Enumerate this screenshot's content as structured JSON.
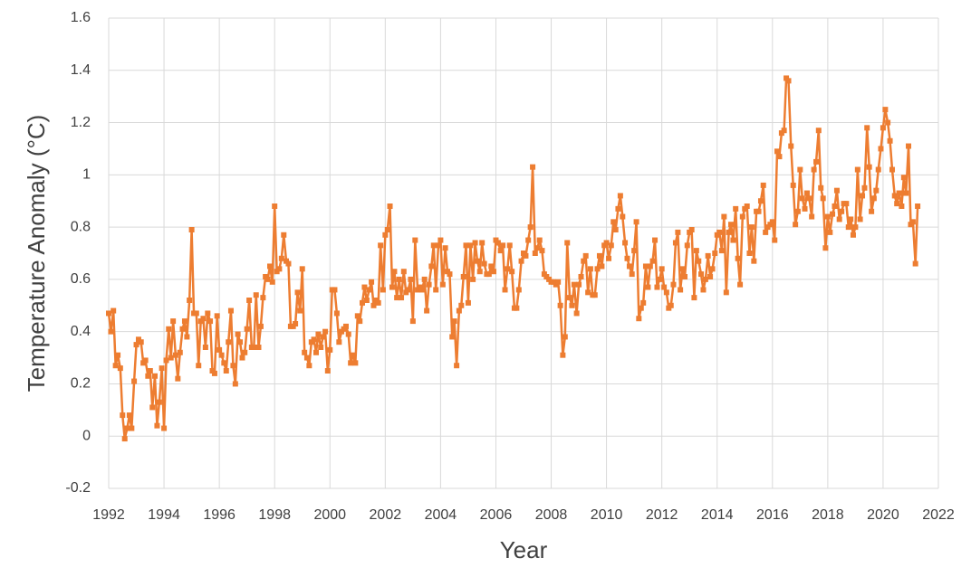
{
  "chart_data": {
    "type": "line",
    "x_label": "Year",
    "y_label": "Temperature Anomaly (°C)",
    "color": "#ed7d31",
    "grid": true,
    "markers": true,
    "xlim": [
      1992,
      2022
    ],
    "xticks": [
      1992,
      1994,
      1996,
      1998,
      2000,
      2002,
      2004,
      2006,
      2008,
      2010,
      2012,
      2014,
      2016,
      2018,
      2020,
      2022
    ],
    "ylim": [
      -0.2,
      1.6
    ],
    "yticks": [
      -0.2,
      0,
      0.2,
      0.4,
      0.6,
      0.8,
      1,
      1.2,
      1.4,
      1.6
    ],
    "x": [
      1992,
      1992.08,
      1992.17,
      1992.25,
      1992.33,
      1992.42,
      1992.5,
      1992.58,
      1992.67,
      1992.75,
      1992.83,
      1992.92,
      1993,
      1993.08,
      1993.17,
      1993.25,
      1993.33,
      1993.42,
      1993.5,
      1993.58,
      1993.67,
      1993.75,
      1993.83,
      1993.92,
      1994,
      1994.08,
      1994.17,
      1994.25,
      1994.33,
      1994.42,
      1994.5,
      1994.58,
      1994.67,
      1994.75,
      1994.83,
      1994.92,
      1995,
      1995.08,
      1995.17,
      1995.25,
      1995.33,
      1995.42,
      1995.5,
      1995.58,
      1995.67,
      1995.75,
      1995.83,
      1995.92,
      1996,
      1996.08,
      1996.17,
      1996.25,
      1996.33,
      1996.42,
      1996.5,
      1996.58,
      1996.67,
      1996.75,
      1996.83,
      1996.92,
      1997,
      1997.08,
      1997.17,
      1997.25,
      1997.33,
      1997.42,
      1997.5,
      1997.58,
      1997.67,
      1997.75,
      1997.83,
      1997.92,
      1998,
      1998.08,
      1998.17,
      1998.25,
      1998.33,
      1998.42,
      1998.5,
      1998.58,
      1998.67,
      1998.75,
      1998.83,
      1998.92,
      1999,
      1999.08,
      1999.17,
      1999.25,
      1999.33,
      1999.42,
      1999.5,
      1999.58,
      1999.67,
      1999.75,
      1999.83,
      1999.92,
      2000,
      2000.08,
      2000.17,
      2000.25,
      2000.33,
      2000.42,
      2000.5,
      2000.58,
      2000.67,
      2000.75,
      2000.83,
      2000.92,
      2001,
      2001.08,
      2001.17,
      2001.25,
      2001.33,
      2001.42,
      2001.5,
      2001.58,
      2001.67,
      2001.75,
      2001.83,
      2001.92,
      2002,
      2002.08,
      2002.17,
      2002.25,
      2002.33,
      2002.42,
      2002.5,
      2002.58,
      2002.67,
      2002.75,
      2002.83,
      2002.92,
      2003,
      2003.08,
      2003.17,
      2003.25,
      2003.33,
      2003.42,
      2003.5,
      2003.58,
      2003.67,
      2003.75,
      2003.83,
      2003.92,
      2004,
      2004.08,
      2004.17,
      2004.25,
      2004.33,
      2004.42,
      2004.5,
      2004.58,
      2004.67,
      2004.75,
      2004.83,
      2004.92,
      2005,
      2005.08,
      2005.17,
      2005.25,
      2005.33,
      2005.42,
      2005.5,
      2005.58,
      2005.67,
      2005.75,
      2005.83,
      2005.92,
      2006,
      2006.08,
      2006.17,
      2006.25,
      2006.33,
      2006.42,
      2006.5,
      2006.58,
      2006.67,
      2006.75,
      2006.83,
      2006.92,
      2007,
      2007.08,
      2007.17,
      2007.25,
      2007.33,
      2007.42,
      2007.5,
      2007.58,
      2007.67,
      2007.75,
      2007.83,
      2007.92,
      2008,
      2008.08,
      2008.17,
      2008.25,
      2008.33,
      2008.42,
      2008.5,
      2008.58,
      2008.67,
      2008.75,
      2008.83,
      2008.92,
      2009,
      2009.08,
      2009.17,
      2009.25,
      2009.33,
      2009.42,
      2009.5,
      2009.58,
      2009.67,
      2009.75,
      2009.83,
      2009.92,
      2010,
      2010.08,
      2010.17,
      2010.25,
      2010.33,
      2010.42,
      2010.5,
      2010.58,
      2010.67,
      2010.75,
      2010.83,
      2010.92,
      2011,
      2011.08,
      2011.17,
      2011.25,
      2011.33,
      2011.42,
      2011.5,
      2011.58,
      2011.67,
      2011.75,
      2011.83,
      2011.92,
      2012,
      2012.08,
      2012.17,
      2012.25,
      2012.33,
      2012.42,
      2012.5,
      2012.58,
      2012.67,
      2012.75,
      2012.83,
      2012.92,
      2013,
      2013.08,
      2013.17,
      2013.25,
      2013.33,
      2013.42,
      2013.5,
      2013.58,
      2013.67,
      2013.75,
      2013.83,
      2013.92,
      2014,
      2014.08,
      2014.17,
      2014.25,
      2014.33,
      2014.42,
      2014.5,
      2014.58,
      2014.67,
      2014.75,
      2014.83,
      2014.92,
      2015,
      2015.08,
      2015.17,
      2015.25,
      2015.33,
      2015.42,
      2015.5,
      2015.58,
      2015.67,
      2015.75,
      2015.83,
      2015.92,
      2016,
      2016.08,
      2016.17,
      2016.25,
      2016.33,
      2016.42,
      2016.5,
      2016.58,
      2016.67,
      2016.75,
      2016.83,
      2016.92,
      2017,
      2017.08,
      2017.17,
      2017.25,
      2017.33,
      2017.42,
      2017.5,
      2017.58,
      2017.67,
      2017.75,
      2017.83,
      2017.92,
      2018,
      2018.08,
      2018.17,
      2018.25,
      2018.33,
      2018.42,
      2018.5,
      2018.58,
      2018.67,
      2018.75,
      2018.83,
      2018.92,
      2019,
      2019.08,
      2019.17,
      2019.25,
      2019.33,
      2019.42,
      2019.5,
      2019.58,
      2019.67,
      2019.75,
      2019.83,
      2019.92,
      2020,
      2020.08,
      2020.17,
      2020.25,
      2020.33,
      2020.42,
      2020.5,
      2020.58,
      2020.67,
      2020.75,
      2020.83,
      2020.92,
      2021,
      2021.08,
      2021.17,
      2021.25
    ],
    "values": [
      0.47,
      0.4,
      0.48,
      0.27,
      0.31,
      0.26,
      0.08,
      -0.01,
      0.03,
      0.08,
      0.03,
      0.21,
      0.35,
      0.37,
      0.36,
      0.28,
      0.29,
      0.23,
      0.25,
      0.11,
      0.23,
      0.04,
      0.13,
      0.26,
      0.03,
      0.29,
      0.41,
      0.3,
      0.44,
      0.31,
      0.22,
      0.32,
      0.41,
      0.44,
      0.38,
      0.52,
      0.79,
      0.47,
      0.47,
      0.27,
      0.44,
      0.45,
      0.34,
      0.47,
      0.44,
      0.25,
      0.24,
      0.46,
      0.33,
      0.31,
      0.28,
      0.25,
      0.36,
      0.48,
      0.27,
      0.2,
      0.39,
      0.36,
      0.3,
      0.32,
      0.41,
      0.52,
      0.34,
      0.34,
      0.54,
      0.34,
      0.42,
      0.53,
      0.61,
      0.6,
      0.65,
      0.59,
      0.88,
      0.63,
      0.64,
      0.68,
      0.77,
      0.67,
      0.66,
      0.42,
      0.42,
      0.43,
      0.55,
      0.48,
      0.64,
      0.32,
      0.3,
      0.27,
      0.36,
      0.37,
      0.32,
      0.39,
      0.34,
      0.38,
      0.4,
      0.25,
      0.33,
      0.56,
      0.56,
      0.47,
      0.36,
      0.4,
      0.41,
      0.42,
      0.39,
      0.28,
      0.31,
      0.28,
      0.46,
      0.44,
      0.51,
      0.57,
      0.52,
      0.56,
      0.59,
      0.5,
      0.52,
      0.51,
      0.73,
      0.56,
      0.77,
      0.79,
      0.88,
      0.57,
      0.63,
      0.53,
      0.6,
      0.53,
      0.63,
      0.55,
      0.56,
      0.6,
      0.44,
      0.75,
      0.56,
      0.57,
      0.56,
      0.6,
      0.48,
      0.58,
      0.65,
      0.73,
      0.56,
      0.73,
      0.75,
      0.58,
      0.72,
      0.63,
      0.62,
      0.38,
      0.44,
      0.27,
      0.48,
      0.5,
      0.61,
      0.73,
      0.51,
      0.73,
      0.6,
      0.74,
      0.67,
      0.63,
      0.74,
      0.66,
      0.62,
      0.62,
      0.65,
      0.63,
      0.75,
      0.74,
      0.71,
      0.73,
      0.56,
      0.64,
      0.73,
      0.63,
      0.49,
      0.49,
      0.56,
      0.67,
      0.7,
      0.69,
      0.75,
      0.8,
      1.03,
      0.7,
      0.72,
      0.75,
      0.71,
      0.62,
      0.61,
      0.6,
      0.59,
      0.59,
      0.58,
      0.59,
      0.5,
      0.31,
      0.38,
      0.74,
      0.53,
      0.5,
      0.58,
      0.47,
      0.58,
      0.61,
      0.67,
      0.69,
      0.55,
      0.64,
      0.54,
      0.54,
      0.64,
      0.69,
      0.65,
      0.73,
      0.74,
      0.68,
      0.73,
      0.82,
      0.79,
      0.87,
      0.92,
      0.84,
      0.74,
      0.68,
      0.65,
      0.62,
      0.71,
      0.82,
      0.45,
      0.49,
      0.51,
      0.65,
      0.57,
      0.65,
      0.67,
      0.75,
      0.57,
      0.6,
      0.64,
      0.57,
      0.55,
      0.49,
      0.5,
      0.58,
      0.74,
      0.78,
      0.56,
      0.64,
      0.61,
      0.73,
      0.78,
      0.79,
      0.53,
      0.71,
      0.67,
      0.62,
      0.56,
      0.6,
      0.69,
      0.61,
      0.64,
      0.7,
      0.77,
      0.78,
      0.71,
      0.84,
      0.55,
      0.78,
      0.81,
      0.75,
      0.87,
      0.68,
      0.58,
      0.84,
      0.87,
      0.88,
      0.7,
      0.8,
      0.67,
      0.86,
      0.86,
      0.9,
      0.96,
      0.78,
      0.8,
      0.81,
      0.82,
      0.75,
      1.09,
      1.07,
      1.16,
      1.17,
      1.37,
      1.36,
      1.11,
      0.96,
      0.81,
      0.86,
      1.02,
      0.91,
      0.87,
      0.93,
      0.91,
      0.84,
      1.02,
      1.05,
      1.17,
      0.95,
      0.91,
      0.72,
      0.84,
      0.78,
      0.85,
      0.88,
      0.94,
      0.83,
      0.86,
      0.89,
      0.89,
      0.8,
      0.83,
      0.77,
      0.8,
      1.02,
      0.83,
      0.92,
      0.95,
      1.18,
      1.03,
      0.86,
      0.91,
      0.94,
      1.02,
      1.1,
      1.18,
      1.25,
      1.2,
      1.13,
      1.02,
      0.92,
      0.89,
      0.93,
      0.88,
      0.99,
      0.93,
      1.11,
      0.81,
      0.82,
      0.66,
      0.88
    ]
  }
}
